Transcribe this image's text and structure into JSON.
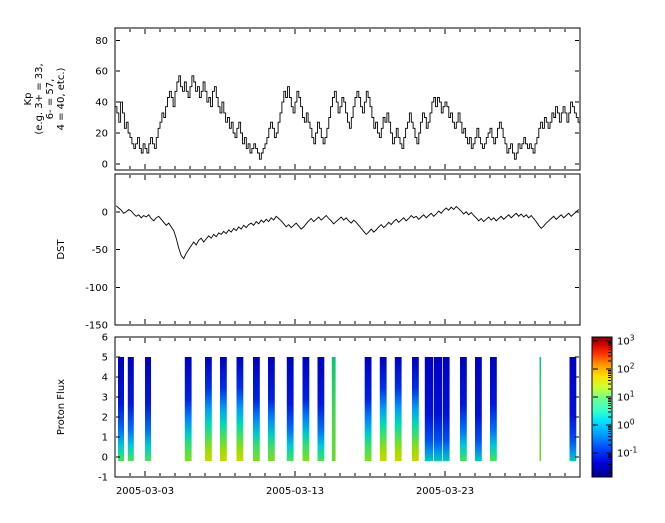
{
  "figure": {
    "background": "#ffffff",
    "x_axis": {
      "start_date": "2005-03-01",
      "span_days": 31,
      "major_tick_days": [
        2,
        12,
        22
      ],
      "major_tick_labels": [
        "2005-03-03",
        "2005-03-13",
        "2005-03-23"
      ],
      "minor_tick_interval_days": 1
    }
  },
  "chart_data": [
    {
      "type": "line",
      "id": "kp",
      "ylabel_lines": [
        "Kp",
        "(e.g. 3+ = 33,",
        "6- = 57,",
        "4 = 40, etc.)"
      ],
      "ylim": [
        -4,
        88
      ],
      "yticks": [
        0,
        20,
        40,
        60,
        80
      ],
      "line_color": "#000000",
      "step": true,
      "x_start_day": 0,
      "x_step_days": 0.125,
      "values": [
        37,
        33,
        27,
        40,
        33,
        23,
        27,
        20,
        17,
        13,
        10,
        13,
        17,
        10,
        7,
        13,
        10,
        7,
        13,
        17,
        13,
        10,
        17,
        23,
        27,
        33,
        30,
        37,
        43,
        47,
        43,
        37,
        47,
        53,
        57,
        50,
        47,
        53,
        47,
        43,
        50,
        57,
        53,
        47,
        50,
        43,
        47,
        53,
        47,
        40,
        43,
        37,
        47,
        50,
        43,
        37,
        33,
        40,
        33,
        27,
        30,
        23,
        27,
        20,
        17,
        23,
        27,
        20,
        13,
        17,
        10,
        13,
        7,
        10,
        13,
        10,
        7,
        3,
        7,
        10,
        13,
        17,
        23,
        27,
        23,
        17,
        20,
        27,
        33,
        40,
        47,
        43,
        50,
        43,
        37,
        33,
        40,
        47,
        43,
        37,
        30,
        27,
        33,
        27,
        23,
        17,
        13,
        20,
        27,
        23,
        17,
        13,
        17,
        23,
        30,
        37,
        43,
        47,
        40,
        33,
        37,
        43,
        40,
        33,
        27,
        23,
        30,
        37,
        43,
        47,
        43,
        37,
        33,
        40,
        47,
        43,
        37,
        30,
        23,
        27,
        20,
        17,
        23,
        30,
        27,
        33,
        27,
        20,
        13,
        17,
        23,
        17,
        13,
        10,
        17,
        23,
        27,
        33,
        27,
        23,
        17,
        13,
        20,
        27,
        33,
        30,
        23,
        27,
        33,
        40,
        43,
        37,
        43,
        40,
        33,
        37,
        40,
        37,
        30,
        33,
        27,
        23,
        27,
        33,
        27,
        20,
        23,
        17,
        13,
        17,
        10,
        13,
        17,
        23,
        17,
        13,
        10,
        13,
        17,
        20,
        23,
        17,
        13,
        17,
        23,
        27,
        23,
        17,
        13,
        7,
        10,
        13,
        7,
        3,
        7,
        13,
        10,
        13,
        17,
        13,
        10,
        13,
        10,
        7,
        13,
        17,
        23,
        27,
        23,
        30,
        27,
        23,
        27,
        33,
        30,
        37,
        33,
        27,
        33,
        37,
        33,
        27,
        33,
        40,
        37,
        33,
        30,
        27
      ]
    },
    {
      "type": "line",
      "id": "dst",
      "ylabel_lines": [
        "DST"
      ],
      "ylim": [
        -150,
        50
      ],
      "yticks": [
        -150,
        -100,
        -50,
        0
      ],
      "line_color": "#000000",
      "step": false,
      "x_start_day": 0.08,
      "x_step_days": 0.166667,
      "values": [
        8,
        5,
        2,
        -2,
        0,
        3,
        1,
        -3,
        -6,
        -4,
        -8,
        -5,
        -7,
        -4,
        -9,
        -12,
        -8,
        -6,
        -10,
        -14,
        -18,
        -15,
        -20,
        -25,
        -35,
        -48,
        -58,
        -62,
        -55,
        -50,
        -45,
        -40,
        -44,
        -38,
        -35,
        -40,
        -36,
        -32,
        -35,
        -30,
        -33,
        -28,
        -30,
        -26,
        -29,
        -24,
        -27,
        -22,
        -25,
        -20,
        -23,
        -18,
        -21,
        -17,
        -15,
        -18,
        -13,
        -16,
        -11,
        -14,
        -10,
        -13,
        -8,
        -11,
        -6,
        -9,
        -12,
        -16,
        -20,
        -17,
        -21,
        -18,
        -15,
        -19,
        -23,
        -20,
        -16,
        -12,
        -9,
        -13,
        -10,
        -7,
        -11,
        -8,
        -5,
        -9,
        -12,
        -16,
        -13,
        -10,
        -7,
        -11,
        -8,
        -12,
        -15,
        -11,
        -14,
        -18,
        -22,
        -26,
        -30,
        -27,
        -23,
        -27,
        -24,
        -20,
        -17,
        -21,
        -18,
        -14,
        -17,
        -13,
        -10,
        -14,
        -11,
        -8,
        -12,
        -9,
        -5,
        -8,
        -6,
        -10,
        -7,
        -4,
        -8,
        -5,
        -2,
        -6,
        -3,
        1,
        -2,
        2,
        5,
        2,
        6,
        3,
        7,
        4,
        1,
        -3,
        0,
        -4,
        -1,
        -5,
        -8,
        -12,
        -9,
        -13,
        -10,
        -7,
        -11,
        -8,
        -12,
        -9,
        -6,
        -10,
        -7,
        -4,
        -8,
        -5,
        -2,
        -6,
        -3,
        -7,
        -4,
        -8,
        -5,
        -9,
        -13,
        -18,
        -22,
        -19,
        -15,
        -12,
        -9,
        -6,
        -10,
        -7,
        -4,
        -8,
        -5,
        -2,
        -6,
        -3,
        0,
        3
      ]
    },
    {
      "type": "heatmap",
      "id": "proton_flux",
      "ylabel_lines": [
        "Proton Flux"
      ],
      "ylim": [
        -1,
        6
      ],
      "yticks": [
        -1,
        0,
        1,
        2,
        3,
        4,
        5,
        6
      ],
      "bar_y_range": [
        -0.2,
        5.0
      ],
      "bars": [
        {
          "day": 0.2,
          "w": 0.4,
          "p": "c"
        },
        {
          "day": 0.85,
          "w": 0.4,
          "p": "c"
        },
        {
          "day": 2.0,
          "w": 0.4,
          "p": "c"
        },
        {
          "day": 4.65,
          "w": 0.45,
          "p": "g"
        },
        {
          "day": 6.0,
          "w": 0.45,
          "p": "y"
        },
        {
          "day": 7.0,
          "w": 0.45,
          "p": "y"
        },
        {
          "day": 8.1,
          "w": 0.45,
          "p": "y"
        },
        {
          "day": 9.2,
          "w": 0.45,
          "p": "g"
        },
        {
          "day": 10.2,
          "w": 0.45,
          "p": "g"
        },
        {
          "day": 11.45,
          "w": 0.45,
          "p": "c"
        },
        {
          "day": 12.5,
          "w": 0.45,
          "p": "g"
        },
        {
          "day": 13.5,
          "w": 0.45,
          "p": "c"
        },
        {
          "day": 14.45,
          "w": 0.25,
          "p": "G"
        },
        {
          "day": 16.65,
          "w": 0.45,
          "p": "g"
        },
        {
          "day": 17.65,
          "w": 0.45,
          "p": "y"
        },
        {
          "day": 18.65,
          "w": 0.45,
          "p": "y"
        },
        {
          "day": 19.8,
          "w": 0.45,
          "p": "y"
        },
        {
          "day": 20.65,
          "w": 0.55,
          "p": "b"
        },
        {
          "day": 21.25,
          "w": 0.55,
          "p": "b"
        },
        {
          "day": 21.85,
          "w": 0.45,
          "p": "b"
        },
        {
          "day": 23.0,
          "w": 0.45,
          "p": "c"
        },
        {
          "day": 24.0,
          "w": 0.45,
          "p": "b"
        },
        {
          "day": 25.0,
          "w": 0.45,
          "p": "c"
        },
        {
          "day": 28.3,
          "w": 0.1,
          "p": "G"
        },
        {
          "day": 30.3,
          "w": 0.45,
          "p": "b"
        }
      ],
      "profiles": {
        "b": [
          [
            0,
            "#0000bf"
          ],
          [
            0.55,
            "#0010d8"
          ],
          [
            0.8,
            "#0050f0"
          ],
          [
            0.93,
            "#00a0e8"
          ],
          [
            1,
            "#00d0a0"
          ]
        ],
        "c": [
          [
            0,
            "#0000bf"
          ],
          [
            0.45,
            "#0018dc"
          ],
          [
            0.7,
            "#0070f8"
          ],
          [
            0.85,
            "#00c8d8"
          ],
          [
            0.95,
            "#20e080"
          ],
          [
            1,
            "#50e050"
          ]
        ],
        "g": [
          [
            0,
            "#0000bf"
          ],
          [
            0.4,
            "#0020e0"
          ],
          [
            0.6,
            "#0088ff"
          ],
          [
            0.75,
            "#00d0c0"
          ],
          [
            0.87,
            "#40e060"
          ],
          [
            1,
            "#80dd20"
          ]
        ],
        "y": [
          [
            0,
            "#0000bf"
          ],
          [
            0.3,
            "#0030e8"
          ],
          [
            0.5,
            "#00a0f8"
          ],
          [
            0.65,
            "#00ddb0"
          ],
          [
            0.78,
            "#50e050"
          ],
          [
            0.9,
            "#a0dd00"
          ],
          [
            1,
            "#c8d800"
          ]
        ],
        "G": [
          [
            0,
            "#00c878"
          ],
          [
            0.5,
            "#40d850"
          ],
          [
            1,
            "#70d830"
          ]
        ]
      },
      "colorbar": {
        "tick_exponents": [
          3,
          2,
          1,
          0,
          -1
        ],
        "top_exponent": 3.15,
        "bottom_exponent": -1.85,
        "gradient_top_to_bottom": [
          [
            0,
            "#800000"
          ],
          [
            0.05,
            "#cc0000"
          ],
          [
            0.12,
            "#ff3300"
          ],
          [
            0.2,
            "#ff9900"
          ],
          [
            0.28,
            "#ffe000"
          ],
          [
            0.36,
            "#ccff33"
          ],
          [
            0.45,
            "#66ff99"
          ],
          [
            0.53,
            "#33ffcc"
          ],
          [
            0.6,
            "#00e5ff"
          ],
          [
            0.7,
            "#0099ff"
          ],
          [
            0.8,
            "#0044ff"
          ],
          [
            0.9,
            "#0000dd"
          ],
          [
            1,
            "#000088"
          ]
        ]
      }
    }
  ]
}
